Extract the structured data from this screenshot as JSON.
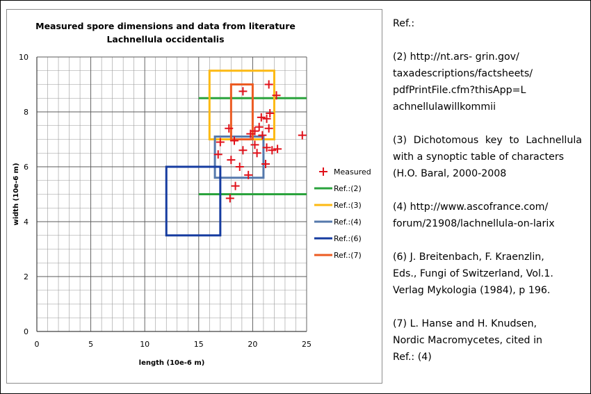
{
  "chart_data": {
    "type": "scatter",
    "title": [
      "Measured spore dimensions and data from literature",
      "Lachnellula occidentalis"
    ],
    "xlabel": "length (10e-6 m)",
    "ylabel": "width (10e-6 m)",
    "xlim": [
      0,
      25
    ],
    "ylim": [
      0,
      10
    ],
    "x_ticks": [
      0,
      5,
      10,
      15,
      20,
      25
    ],
    "y_ticks": [
      0,
      2,
      4,
      6,
      8,
      10
    ],
    "x_minor_step": 1,
    "y_minor_step": 0.5,
    "grid": true,
    "legend_position": "right",
    "series": [
      {
        "name": "Measured",
        "kind": "points",
        "marker": "plus",
        "color": "#e0111a",
        "points": [
          [
            21.5,
            9.0
          ],
          [
            19.1,
            8.75
          ],
          [
            22.2,
            8.6
          ],
          [
            21.6,
            7.95
          ],
          [
            20.8,
            7.8
          ],
          [
            21.3,
            7.75
          ],
          [
            20.6,
            7.45
          ],
          [
            21.5,
            7.4
          ],
          [
            17.8,
            7.4
          ],
          [
            20.2,
            7.3
          ],
          [
            19.8,
            7.2
          ],
          [
            20.9,
            7.15
          ],
          [
            24.6,
            7.15
          ],
          [
            18.3,
            6.95
          ],
          [
            17.0,
            6.9
          ],
          [
            20.2,
            6.8
          ],
          [
            21.3,
            6.7
          ],
          [
            22.3,
            6.65
          ],
          [
            21.8,
            6.6
          ],
          [
            19.1,
            6.6
          ],
          [
            20.4,
            6.5
          ],
          [
            16.8,
            6.45
          ],
          [
            18.0,
            6.25
          ],
          [
            21.2,
            6.1
          ],
          [
            18.8,
            6.0
          ],
          [
            19.6,
            5.7
          ],
          [
            18.4,
            5.3
          ],
          [
            17.9,
            4.85
          ]
        ]
      },
      {
        "name": "Ref.:(2)",
        "kind": "hlines",
        "color": "#2aa33c",
        "x": [
          15,
          25
        ],
        "y": [
          8.5,
          5.0
        ]
      },
      {
        "name": "Ref.:(3)",
        "kind": "rect",
        "color": "#fcb913",
        "x": [
          16,
          22
        ],
        "y": [
          7,
          9.5
        ]
      },
      {
        "name": "Ref.:(4)",
        "kind": "rect",
        "color": "#5579ac",
        "x": [
          16.5,
          21
        ],
        "y": [
          5.6,
          7.1
        ]
      },
      {
        "name": "Ref.:(6)",
        "kind": "rect",
        "color": "#163ca0",
        "x": [
          12,
          17
        ],
        "y": [
          3.5,
          6
        ]
      },
      {
        "name": "Ref.:(7)",
        "kind": "rect",
        "color": "#ec5b22",
        "x": [
          18,
          20
        ],
        "y": [
          7,
          9
        ]
      }
    ]
  },
  "references": {
    "heading": "Ref.:",
    "items": [
      {
        "lines": [
          "(2) http://nt.ars- grin.gov/",
          "taxadescriptions/factsheets/",
          "pdfPrintFile.cfm?thisApp=L",
          "achnellulawillkommii"
        ],
        "justify": [
          false,
          false,
          false,
          false
        ]
      },
      {
        "lines": [
          "(3) Dichotomous key to Lachnellula",
          "with a synoptic table of characters",
          "(H.O. Baral, 2000-2008"
        ],
        "justify": [
          true,
          false,
          false
        ]
      },
      {
        "lines": [
          "(4) http://www.ascofrance.com/",
          "forum/21908/lachnellula-on-larix"
        ],
        "justify": [
          false,
          false
        ]
      },
      {
        "lines": [
          "(6) J. Breitenbach, F. Kraenzlin,",
          "Eds., Fungi of Switzerland, Vol.1.",
          "Verlag Mykologia (1984), p 196."
        ],
        "justify": [
          false,
          false,
          false
        ]
      },
      {
        "lines": [
          "(7)  L. Hanse and H. Knudsen,",
          "Nordic Macromycetes, cited in",
          "Ref.: (4)"
        ],
        "justify": [
          false,
          false,
          false
        ]
      }
    ]
  }
}
